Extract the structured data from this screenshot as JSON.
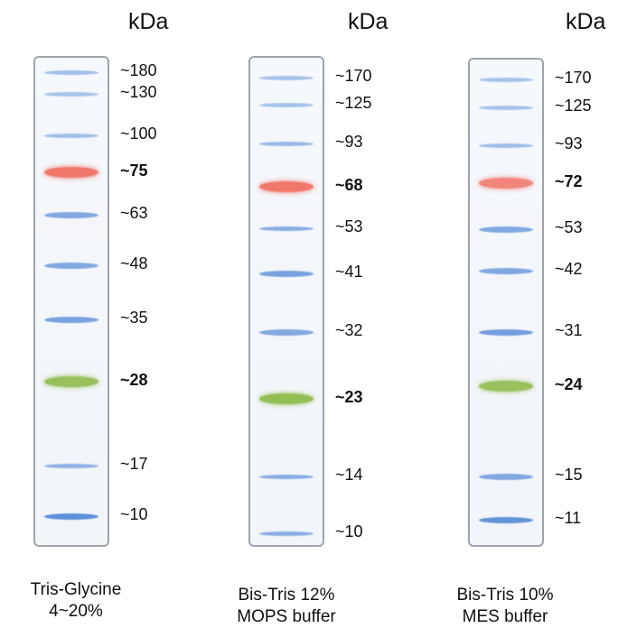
{
  "unit_label": "kDa",
  "colors": {
    "blue_band": "#5d8ed8",
    "red_band": "#f06a5c",
    "green_band": "#8fbc4d"
  },
  "lanes": [
    {
      "caption_lines": [
        "Tris-Glycine",
        "4~20%"
      ],
      "bands": [
        {
          "label": "~180",
          "bold": false,
          "color": "blue",
          "intensity": 0.55
        },
        {
          "label": "~130",
          "bold": false,
          "color": "blue",
          "intensity": 0.5
        },
        {
          "label": "~100",
          "bold": false,
          "color": "blue",
          "intensity": 0.55
        },
        {
          "label": "~75",
          "bold": true,
          "color": "red",
          "intensity": 0.9
        },
        {
          "label": "~63",
          "bold": false,
          "color": "blue",
          "intensity": 0.75
        },
        {
          "label": "~48",
          "bold": false,
          "color": "blue",
          "intensity": 0.75
        },
        {
          "label": "~35",
          "bold": false,
          "color": "blue",
          "intensity": 0.8
        },
        {
          "label": "~28",
          "bold": true,
          "color": "green",
          "intensity": 0.9
        },
        {
          "label": "~17",
          "bold": false,
          "color": "blue",
          "intensity": 0.65
        },
        {
          "label": "~10",
          "bold": false,
          "color": "blue",
          "intensity": 1.0
        }
      ]
    },
    {
      "caption_lines": [
        "Bis-Tris 12%",
        "MOPS buffer"
      ],
      "bands": [
        {
          "label": "~170",
          "bold": false,
          "color": "blue",
          "intensity": 0.5
        },
        {
          "label": "~125",
          "bold": false,
          "color": "blue",
          "intensity": 0.5
        },
        {
          "label": "~93",
          "bold": false,
          "color": "blue",
          "intensity": 0.6
        },
        {
          "label": "~68",
          "bold": true,
          "color": "red",
          "intensity": 0.9
        },
        {
          "label": "~53",
          "bold": false,
          "color": "blue",
          "intensity": 0.7
        },
        {
          "label": "~41",
          "bold": false,
          "color": "blue",
          "intensity": 0.8
        },
        {
          "label": "~32",
          "bold": false,
          "color": "blue",
          "intensity": 0.75
        },
        {
          "label": "~23",
          "bold": true,
          "color": "green",
          "intensity": 0.95
        },
        {
          "label": "~14",
          "bold": false,
          "color": "blue",
          "intensity": 0.7
        },
        {
          "label": "~10",
          "bold": false,
          "color": "blue",
          "intensity": 0.7
        }
      ]
    },
    {
      "caption_lines": [
        "Bis-Tris 10%",
        "MES buffer"
      ],
      "bands": [
        {
          "label": "~170",
          "bold": false,
          "color": "blue",
          "intensity": 0.5
        },
        {
          "label": "~125",
          "bold": false,
          "color": "blue",
          "intensity": 0.5
        },
        {
          "label": "~93",
          "bold": false,
          "color": "blue",
          "intensity": 0.55
        },
        {
          "label": "~72",
          "bold": true,
          "color": "red",
          "intensity": 0.8
        },
        {
          "label": "~53",
          "bold": false,
          "color": "blue",
          "intensity": 0.75
        },
        {
          "label": "~42",
          "bold": false,
          "color": "blue",
          "intensity": 0.75
        },
        {
          "label": "~31",
          "bold": false,
          "color": "blue",
          "intensity": 0.85
        },
        {
          "label": "~24",
          "bold": true,
          "color": "green",
          "intensity": 0.9
        },
        {
          "label": "~15",
          "bold": false,
          "color": "blue",
          "intensity": 0.75
        },
        {
          "label": "~11",
          "bold": false,
          "color": "blue",
          "intensity": 0.95
        }
      ]
    }
  ]
}
